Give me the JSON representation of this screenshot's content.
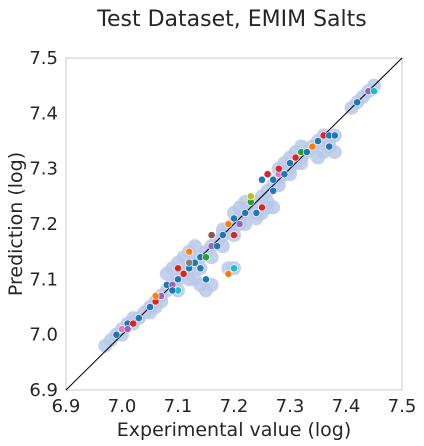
{
  "chart_data": {
    "type": "scatter",
    "title": "Test Dataset, EMIM Salts",
    "xlabel": "Experimental value (log)",
    "ylabel": "Prediction (log)",
    "xlim": [
      6.9,
      7.5
    ],
    "ylim": [
      6.9,
      7.5
    ],
    "xticks": [
      "6.9",
      "7.0",
      "7.1",
      "7.2",
      "7.3",
      "7.4",
      "7.5"
    ],
    "yticks": [
      "6.9",
      "7.0",
      "7.1",
      "7.2",
      "7.3",
      "7.4",
      "7.5"
    ],
    "grid": false,
    "reference_line": {
      "from": [
        6.9,
        6.9
      ],
      "to": [
        7.5,
        7.5
      ],
      "color": "#000000"
    },
    "band_color": "#b8c9ea",
    "point_colors": [
      "#1f77b4",
      "#d62728",
      "#ff7f0e",
      "#2ca02c",
      "#9467bd",
      "#8c564b",
      "#e377c2",
      "#7f7f7f",
      "#bcbd22",
      "#17becf"
    ],
    "band_points": [
      [
        6.97,
        6.98
      ],
      [
        6.98,
        6.99
      ],
      [
        6.99,
        7.0
      ],
      [
        7.0,
        7.01
      ],
      [
        7.01,
        7.02
      ],
      [
        7.02,
        7.03
      ],
      [
        7.03,
        7.03
      ],
      [
        7.04,
        7.04
      ],
      [
        7.05,
        7.05
      ],
      [
        7.06,
        7.06
      ],
      [
        7.07,
        7.07
      ],
      [
        7.08,
        7.08
      ],
      [
        7.09,
        7.09
      ],
      [
        7.1,
        7.1
      ],
      [
        7.11,
        7.11
      ],
      [
        7.12,
        7.12
      ],
      [
        7.13,
        7.13
      ],
      [
        7.14,
        7.14
      ],
      [
        7.15,
        7.15
      ],
      [
        7.16,
        7.16
      ],
      [
        7.17,
        7.17
      ],
      [
        7.18,
        7.18
      ],
      [
        7.19,
        7.19
      ],
      [
        7.2,
        7.2
      ],
      [
        7.21,
        7.21
      ],
      [
        7.22,
        7.22
      ],
      [
        7.23,
        7.23
      ],
      [
        7.24,
        7.24
      ],
      [
        7.25,
        7.25
      ],
      [
        7.26,
        7.26
      ],
      [
        7.27,
        7.27
      ],
      [
        7.28,
        7.28
      ],
      [
        7.29,
        7.29
      ],
      [
        7.3,
        7.3
      ],
      [
        7.31,
        7.31
      ],
      [
        7.32,
        7.32
      ],
      [
        7.33,
        7.33
      ],
      [
        7.34,
        7.34
      ],
      [
        7.35,
        7.35
      ],
      [
        7.36,
        7.36
      ],
      [
        7.41,
        7.41
      ],
      [
        7.42,
        7.42
      ],
      [
        7.43,
        7.43
      ],
      [
        7.44,
        7.44
      ],
      [
        7.45,
        7.45
      ],
      [
        7.1,
        7.08
      ],
      [
        7.12,
        7.1
      ],
      [
        7.14,
        7.12
      ],
      [
        7.16,
        7.14
      ],
      [
        7.18,
        7.16
      ],
      [
        7.2,
        7.18
      ],
      [
        7.22,
        7.2
      ],
      [
        7.24,
        7.22
      ],
      [
        7.26,
        7.24
      ],
      [
        7.28,
        7.27
      ],
      [
        7.3,
        7.29
      ],
      [
        7.32,
        7.31
      ],
      [
        7.13,
        7.1
      ],
      [
        7.14,
        7.09
      ],
      [
        7.15,
        7.08
      ],
      [
        7.16,
        7.09
      ],
      [
        7.2,
        7.22
      ],
      [
        7.21,
        7.23
      ],
      [
        7.22,
        7.24
      ],
      [
        7.18,
        7.19
      ],
      [
        7.24,
        7.21
      ],
      [
        7.25,
        7.22
      ],
      [
        7.26,
        7.23
      ],
      [
        7.27,
        7.23
      ],
      [
        7.28,
        7.3
      ],
      [
        7.29,
        7.31
      ],
      [
        7.3,
        7.32
      ],
      [
        7.31,
        7.33
      ],
      [
        7.32,
        7.34
      ],
      [
        7.35,
        7.32
      ],
      [
        7.36,
        7.33
      ],
      [
        7.37,
        7.34
      ],
      [
        7.38,
        7.36
      ],
      [
        7.37,
        7.35
      ],
      [
        7.08,
        7.11
      ],
      [
        7.09,
        7.12
      ],
      [
        7.1,
        7.13
      ],
      [
        7.11,
        7.14
      ],
      [
        7.12,
        7.15
      ],
      [
        7.13,
        7.16
      ],
      [
        7.05,
        7.04
      ],
      [
        7.06,
        7.05
      ],
      [
        7.07,
        7.06
      ],
      [
        7.0,
        7.0
      ],
      [
        7.02,
        7.02
      ],
      [
        7.19,
        7.12
      ],
      [
        7.2,
        7.12
      ],
      [
        7.38,
        7.33
      ],
      [
        7.2,
        7.2
      ],
      [
        7.21,
        7.2
      ]
    ],
    "points": [
      [
        6.99,
        7.0,
        0
      ],
      [
        7.0,
        7.01,
        6
      ],
      [
        7.01,
        7.02,
        0
      ],
      [
        7.02,
        7.02,
        1
      ],
      [
        7.03,
        7.03,
        0
      ],
      [
        7.05,
        7.05,
        0
      ],
      [
        7.06,
        7.06,
        1
      ],
      [
        7.07,
        7.07,
        4
      ],
      [
        7.08,
        7.09,
        0
      ],
      [
        7.09,
        7.09,
        4
      ],
      [
        7.1,
        7.1,
        0
      ],
      [
        7.1,
        7.08,
        9
      ],
      [
        7.11,
        7.11,
        1
      ],
      [
        7.12,
        7.12,
        0
      ],
      [
        7.12,
        7.15,
        2
      ],
      [
        7.13,
        7.13,
        0
      ],
      [
        7.14,
        7.14,
        0
      ],
      [
        7.15,
        7.14,
        3
      ],
      [
        7.15,
        7.1,
        0
      ],
      [
        7.16,
        7.16,
        4
      ],
      [
        7.17,
        7.16,
        0
      ],
      [
        7.18,
        7.18,
        0
      ],
      [
        7.19,
        7.2,
        2
      ],
      [
        7.2,
        7.18,
        1
      ],
      [
        7.2,
        7.21,
        0
      ],
      [
        7.21,
        7.2,
        4
      ],
      [
        7.22,
        7.22,
        0
      ],
      [
        7.23,
        7.24,
        3
      ],
      [
        7.23,
        7.25,
        8
      ],
      [
        7.24,
        7.22,
        0
      ],
      [
        7.25,
        7.23,
        1
      ],
      [
        7.25,
        7.28,
        0
      ],
      [
        7.26,
        7.29,
        1
      ],
      [
        7.27,
        7.28,
        0
      ],
      [
        7.28,
        7.29,
        6
      ],
      [
        7.29,
        7.29,
        0
      ],
      [
        7.3,
        7.31,
        0
      ],
      [
        7.31,
        7.32,
        1
      ],
      [
        7.32,
        7.33,
        3
      ],
      [
        7.33,
        7.33,
        0
      ],
      [
        7.34,
        7.34,
        2
      ],
      [
        7.35,
        7.35,
        0
      ],
      [
        7.36,
        7.36,
        1
      ],
      [
        7.37,
        7.36,
        0
      ],
      [
        7.38,
        7.36,
        0
      ],
      [
        7.42,
        7.42,
        0
      ],
      [
        7.44,
        7.44,
        4
      ],
      [
        7.45,
        7.44,
        9
      ],
      [
        7.19,
        7.11,
        2
      ],
      [
        7.2,
        7.12,
        9
      ],
      [
        7.09,
        7.08,
        0
      ],
      [
        7.1,
        7.12,
        1
      ],
      [
        7.14,
        7.12,
        0
      ],
      [
        7.12,
        7.13,
        7
      ],
      [
        7.27,
        7.26,
        0
      ],
      [
        7.28,
        7.3,
        1
      ],
      [
        7.37,
        7.34,
        0
      ],
      [
        7.06,
        7.07,
        2
      ],
      [
        7.01,
        7.01,
        4
      ],
      [
        7.16,
        7.18,
        5
      ]
    ]
  }
}
